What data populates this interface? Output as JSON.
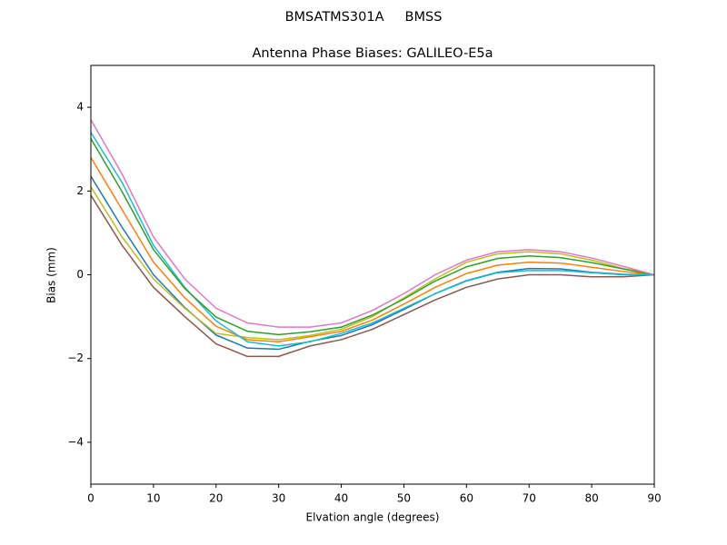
{
  "chart_data": {
    "type": "line",
    "suptitle": "BMSATMS301A     BMSS",
    "title": "Antenna Phase Biases: GALILEO-E5a",
    "x_label": "Elvation angle (degrees)",
    "y_label": "Bias (mm)",
    "x": [
      0,
      5,
      10,
      15,
      20,
      25,
      30,
      35,
      40,
      45,
      50,
      55,
      60,
      65,
      70,
      75,
      80,
      85,
      90
    ],
    "xlim": [
      0,
      90
    ],
    "xticks": [
      0,
      10,
      20,
      30,
      40,
      50,
      60,
      70,
      80,
      90
    ],
    "ylim": [
      -5,
      5
    ],
    "yticks": [
      {
        "value": -4,
        "label": "−4"
      },
      {
        "value": -2,
        "label": "−2"
      },
      0,
      2,
      4
    ],
    "grid": false,
    "series": [
      {
        "color": "#8c564b",
        "values": [
          1.9,
          0.7,
          -0.3,
          -1.0,
          -1.65,
          -1.95,
          -1.95,
          -1.7,
          -1.55,
          -1.3,
          -0.95,
          -0.6,
          -0.3,
          -0.1,
          0.0,
          0.0,
          -0.05,
          -0.05,
          0
        ]
      },
      {
        "color": "#1f77b4",
        "values": [
          2.35,
          1.13,
          0.0,
          -0.78,
          -1.44,
          -1.75,
          -1.78,
          -1.59,
          -1.45,
          -1.19,
          -0.83,
          -0.45,
          -0.14,
          0.06,
          0.15,
          0.14,
          0.06,
          0.01,
          0
        ]
      },
      {
        "color": "#bcbd22",
        "values": [
          2.1,
          0.9,
          -0.1,
          -0.8,
          -1.4,
          -1.5,
          -1.55,
          -1.45,
          -1.3,
          -1.0,
          -0.55,
          -0.1,
          0.3,
          0.5,
          0.55,
          0.5,
          0.35,
          0.15,
          0
        ]
      },
      {
        "color": "#ff7f0e",
        "values": [
          2.8,
          1.55,
          0.3,
          -0.55,
          -1.23,
          -1.55,
          -1.6,
          -1.48,
          -1.35,
          -1.08,
          -0.7,
          -0.3,
          0.03,
          0.23,
          0.3,
          0.28,
          0.18,
          0.08,
          0
        ]
      },
      {
        "color": "#17becf",
        "values": [
          3.4,
          2.2,
          0.7,
          -0.3,
          -1.1,
          -1.6,
          -1.7,
          -1.6,
          -1.4,
          -1.15,
          -0.8,
          -0.45,
          -0.15,
          0.05,
          0.1,
          0.1,
          0.05,
          0,
          0
        ]
      },
      {
        "color": "#2ca02c",
        "values": [
          3.25,
          1.98,
          0.6,
          -0.33,
          -1.01,
          -1.35,
          -1.43,
          -1.36,
          -1.25,
          -0.96,
          -0.58,
          -0.15,
          0.19,
          0.39,
          0.45,
          0.41,
          0.29,
          0.14,
          0
        ]
      },
      {
        "color": "#e377c2",
        "values": [
          3.7,
          2.4,
          0.9,
          -0.1,
          -0.8,
          -1.15,
          -1.25,
          -1.25,
          -1.15,
          -0.85,
          -0.45,
          0.0,
          0.35,
          0.55,
          0.6,
          0.55,
          0.4,
          0.2,
          0
        ]
      }
    ]
  }
}
